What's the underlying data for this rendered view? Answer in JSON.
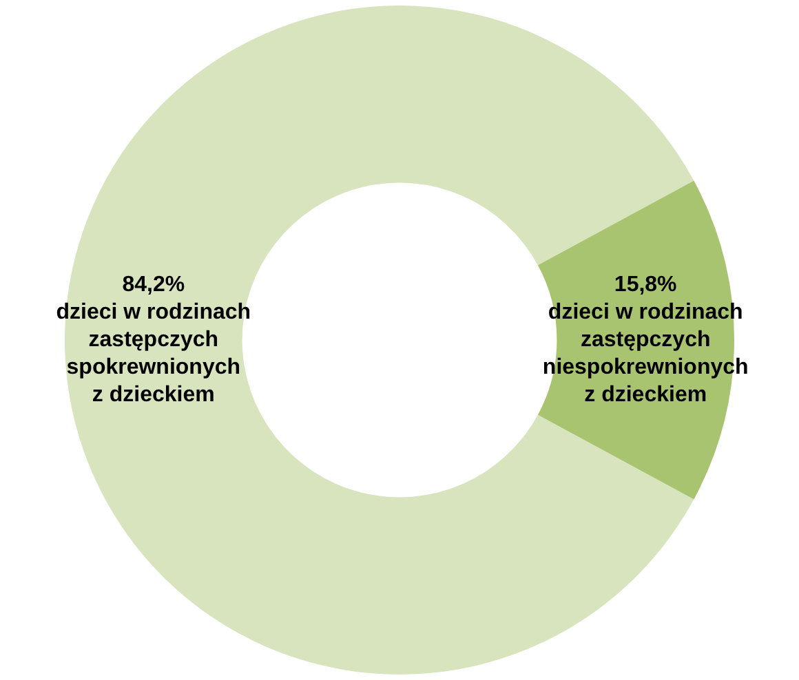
{
  "chart_data": {
    "type": "donut",
    "categories": [
      "dzieci w rodzinach zastępczych spokrewnionych z dzieckiem",
      "dzieci w rodzinach zastępczych niespokrewnionych z dzieckiem"
    ],
    "values": [
      84.2,
      15.8
    ],
    "colors": [
      "#d7e4bd",
      "#a9c470"
    ],
    "value_labels": [
      "84,2%",
      "15,8%"
    ]
  }
}
